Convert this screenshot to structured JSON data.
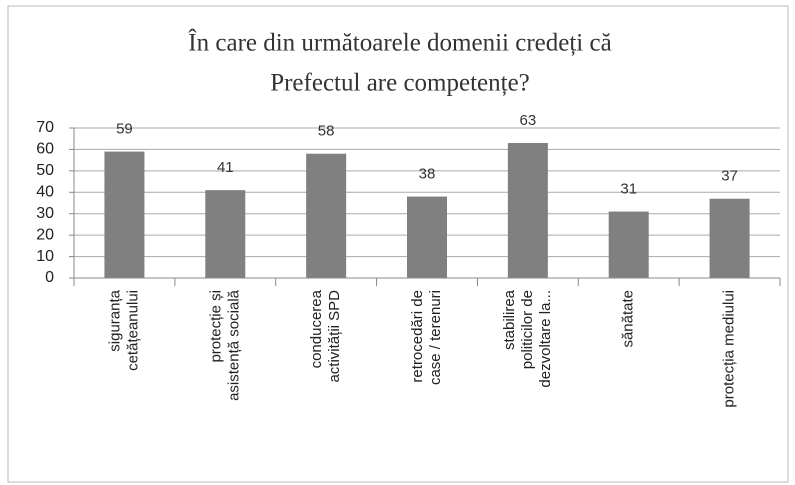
{
  "chart_data": {
    "type": "bar",
    "title": [
      "În care din următoarele domenii credeți că",
      "Prefectul are competențe?"
    ],
    "categories": [
      "siguranța\ncetățeanului",
      "protecție și\nasistență socială",
      "conducerea\nactivității SPD",
      "retrocedări de\ncase / terenuri",
      "stabilirea\npoliticilor de\ndezvoltare la...",
      "sănătate",
      "protecția mediului"
    ],
    "values": [
      59,
      41,
      58,
      38,
      63,
      31,
      37
    ],
    "color": "#808080",
    "ylim": [
      0,
      70
    ],
    "yticks": [
      0,
      10,
      20,
      30,
      40,
      50,
      60,
      70
    ],
    "grid": true
  }
}
